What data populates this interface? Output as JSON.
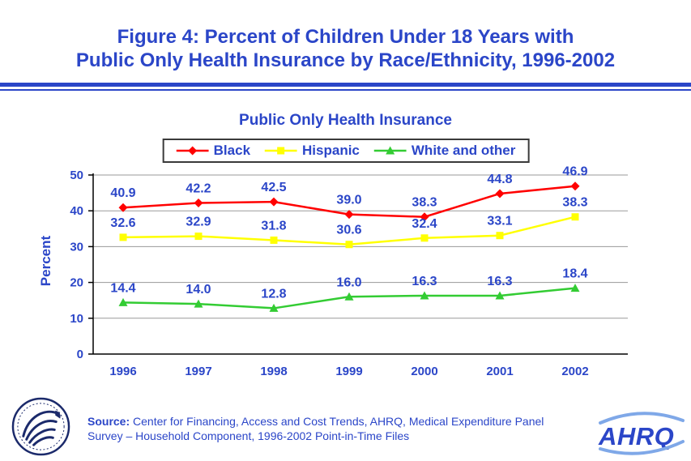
{
  "title": {
    "line1": "Figure 4: Percent of Children Under 18 Years with",
    "line2": "Public Only Health Insurance by Race/Ethnicity, 1996-2002"
  },
  "chart_data": {
    "type": "line",
    "title": "Public Only Health Insurance",
    "xlabel": "",
    "ylabel": "Percent",
    "categories": [
      "1996",
      "1997",
      "1998",
      "1999",
      "2000",
      "2001",
      "2002"
    ],
    "series": [
      {
        "name": "Black",
        "color": "#FF0000",
        "marker": "diamond",
        "values": [
          40.9,
          42.2,
          42.5,
          39.0,
          38.3,
          44.8,
          46.9
        ]
      },
      {
        "name": "Hispanic",
        "color": "#FFFF00",
        "marker": "square",
        "values": [
          32.6,
          32.9,
          31.8,
          30.6,
          32.4,
          33.1,
          38.3
        ]
      },
      {
        "name": "White and other",
        "color": "#33CC33",
        "marker": "triangle",
        "values": [
          14.4,
          14.0,
          12.8,
          16.0,
          16.3,
          16.3,
          18.4
        ]
      }
    ],
    "ylim": [
      0,
      50
    ],
    "yticks": [
      0,
      10,
      20,
      30,
      40,
      50
    ],
    "grid": true,
    "legend_position": "top",
    "data_labels": true
  },
  "footer": {
    "source_label": "Source:",
    "source_text": "Center for Financing, Access and Cost Trends, AHRQ, Medical Expenditure Panel Survey – Household Component, 1996-2002 Point-in-Time Files"
  },
  "logos": {
    "ahrq_text": "AHRQ"
  },
  "colors": {
    "accent_blue": "#2B46C8",
    "grid_gray": "#9a9a9a",
    "axis_black": "#000000",
    "logo_navy": "#1b2a6b",
    "swoosh_blue": "#7FA8E8"
  }
}
